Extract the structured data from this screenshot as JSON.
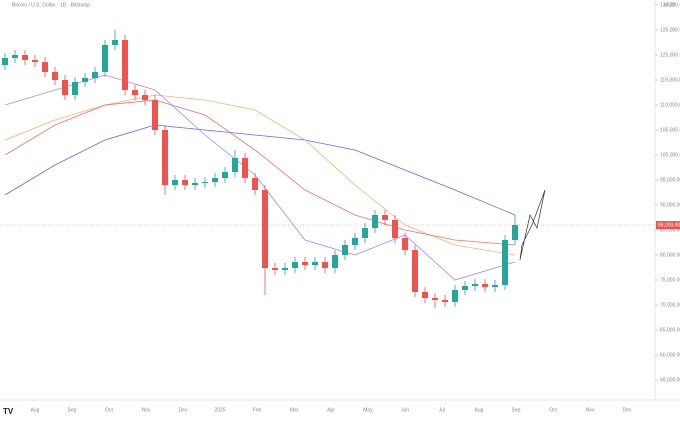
{
  "chart_data": {
    "type": "candlestick",
    "title": "Bitcoin / U.S. Dollar · 1D · Bitstamp",
    "currency": "USD",
    "up_color": "#26a69a",
    "down_color": "#ef5350",
    "ylim": [
      55000,
      130000
    ],
    "yticks": [
      {
        "value": 55000,
        "label": "55,000.00"
      },
      {
        "value": 60000,
        "label": "60,000.00"
      },
      {
        "value": 65000,
        "label": "65,000.00"
      },
      {
        "value": 70000,
        "label": "70,000.00"
      },
      {
        "value": 75000,
        "label": "75,000.00"
      },
      {
        "value": 80000,
        "label": "80,000.00"
      },
      {
        "value": 85000,
        "label": "85,000.00"
      },
      {
        "value": 90000,
        "label": "90,000.00"
      },
      {
        "value": 95000,
        "label": "95,000.00"
      },
      {
        "value": 100000,
        "label": "100,000.00"
      },
      {
        "value": 105000,
        "label": "105,000.00"
      },
      {
        "value": 110000,
        "label": "110,000.00"
      },
      {
        "value": 115000,
        "label": "115,000.00"
      },
      {
        "value": 120000,
        "label": "120,000.00"
      },
      {
        "value": 125000,
        "label": "125,000.00"
      },
      {
        "value": 130000,
        "label": "130,000.00"
      }
    ],
    "x_labels": [
      "Aug",
      "Sep",
      "Oct",
      "Nov",
      "Dec",
      "2025",
      "Feb",
      "Mar",
      "Apr",
      "May",
      "Jun",
      "Jul",
      "Aug",
      "Sep",
      "Oct",
      "Nov",
      "Dec"
    ],
    "ohlc": [
      [
        118000,
        120400,
        117000,
        119400
      ],
      [
        119400,
        121000,
        118400,
        120000
      ],
      [
        120000,
        121000,
        118000,
        119000
      ],
      [
        119000,
        120000,
        117600,
        118600
      ],
      [
        118600,
        119600,
        115600,
        116600
      ],
      [
        116600,
        117600,
        114000,
        115000
      ],
      [
        115000,
        116000,
        111000,
        112000
      ],
      [
        112000,
        115600,
        111000,
        114600
      ],
      [
        114600,
        116400,
        113600,
        115400
      ],
      [
        115400,
        117600,
        114400,
        116600
      ],
      [
        116600,
        123000,
        115600,
        122000
      ],
      [
        122000,
        125000,
        121000,
        123000
      ],
      [
        123000,
        124000,
        112000,
        113000
      ],
      [
        113000,
        114000,
        111000,
        112000
      ],
      [
        112000,
        113000,
        110000,
        111000
      ],
      [
        111000,
        112000,
        104000,
        105000
      ],
      [
        105000,
        106000,
        92000,
        94000
      ],
      [
        94000,
        96000,
        93000,
        95000
      ],
      [
        95000,
        96000,
        93000,
        94000
      ],
      [
        94000,
        95400,
        93000,
        94400
      ],
      [
        94400,
        95600,
        93400,
        94600
      ],
      [
        94600,
        96400,
        93600,
        95400
      ],
      [
        95400,
        97600,
        94400,
        96600
      ],
      [
        96600,
        101000,
        95600,
        99400
      ],
      [
        99400,
        100400,
        94400,
        95400
      ],
      [
        95400,
        96400,
        92000,
        93000
      ],
      [
        93000,
        94000,
        72000,
        77400
      ],
      [
        77400,
        78400,
        76000,
        77000
      ],
      [
        77000,
        78400,
        76000,
        77400
      ],
      [
        77400,
        79600,
        76400,
        78600
      ],
      [
        78600,
        79600,
        77000,
        78000
      ],
      [
        78000,
        79600,
        77000,
        78600
      ],
      [
        78600,
        79600,
        76400,
        77400
      ],
      [
        77400,
        81000,
        76400,
        80000
      ],
      [
        80000,
        83000,
        79000,
        82000
      ],
      [
        82000,
        84400,
        81000,
        83400
      ],
      [
        83400,
        86400,
        82400,
        85400
      ],
      [
        85400,
        89000,
        84400,
        88000
      ],
      [
        88000,
        89000,
        86000,
        87000
      ],
      [
        87000,
        88000,
        82400,
        83400
      ],
      [
        83400,
        84400,
        80000,
        81000
      ],
      [
        81000,
        82000,
        71600,
        72600
      ],
      [
        72600,
        73600,
        70400,
        71400
      ],
      [
        71400,
        72400,
        69400,
        71000
      ],
      [
        71000,
        72000,
        69600,
        70600
      ],
      [
        70600,
        74000,
        69600,
        73000
      ],
      [
        73000,
        74800,
        72000,
        73800
      ],
      [
        73800,
        75200,
        72800,
        74200
      ],
      [
        74200,
        75200,
        72600,
        73600
      ],
      [
        73600,
        75000,
        72600,
        74000
      ],
      [
        74000,
        84000,
        73000,
        83000
      ],
      [
        83000,
        88000,
        82000,
        86000
      ]
    ],
    "ma_index": [
      0,
      5,
      10,
      15,
      20,
      25,
      30,
      35,
      40,
      45,
      51
    ],
    "moving_averages": [
      {
        "color": "#5b6ee1",
        "values": [
          92000,
          98000,
          103000,
          106000,
          105000,
          104000,
          103000,
          101000,
          97000,
          93000,
          88000
        ]
      },
      {
        "color": "#f0b27a",
        "values": [
          103000,
          107000,
          110000,
          112000,
          111000,
          109000,
          103000,
          94000,
          86000,
          82000,
          80000
        ]
      },
      {
        "color": "#e57373",
        "values": [
          100000,
          106000,
          110000,
          111000,
          108000,
          101000,
          93000,
          88000,
          85000,
          83000,
          82000
        ]
      },
      {
        "color": "#9c8df0",
        "values": [
          110000,
          113000,
          116000,
          113000,
          104000,
          96000,
          83000,
          80000,
          84000,
          75000,
          78600
        ]
      }
    ],
    "last_price": {
      "value": 86000,
      "label": "86,000.00"
    }
  }
}
